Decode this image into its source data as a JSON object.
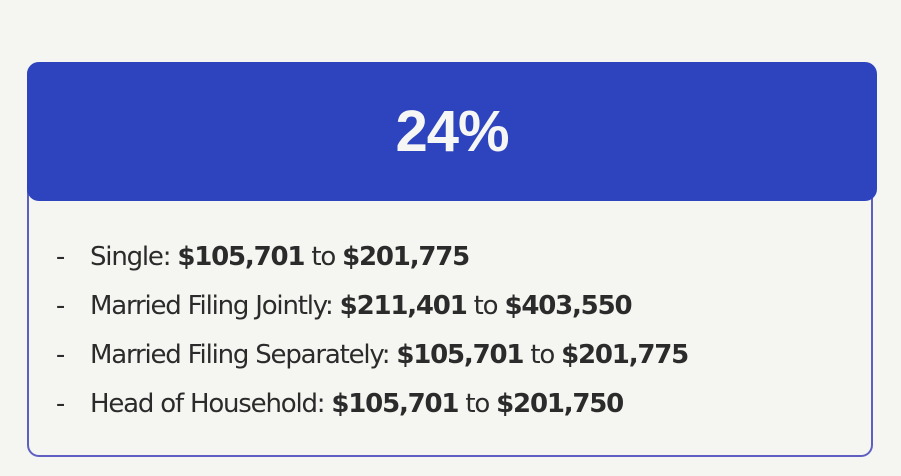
{
  "bracket": {
    "rate": "24%",
    "colors": {
      "header_bg": "#2e44bf",
      "border": "#5f5fc2",
      "page_bg": "#f5f5f1",
      "text": "#2b2b2b"
    },
    "rows": [
      {
        "bullet": "-",
        "label": "Single: ",
        "from": "$105,701",
        "sep": " to ",
        "to": "$201,775"
      },
      {
        "bullet": "-",
        "label": "Married Filing Jointly: ",
        "from": "$211,401",
        "sep": " to ",
        "to": "$403,550"
      },
      {
        "bullet": "-",
        "label": "Married Filing Separately: ",
        "from": "$105,701",
        "sep": " to ",
        "to": "$201,775"
      },
      {
        "bullet": "-",
        "label": "Head of Household: ",
        "from": "$105,701",
        "sep": " to ",
        "to": "$201,750"
      }
    ]
  }
}
